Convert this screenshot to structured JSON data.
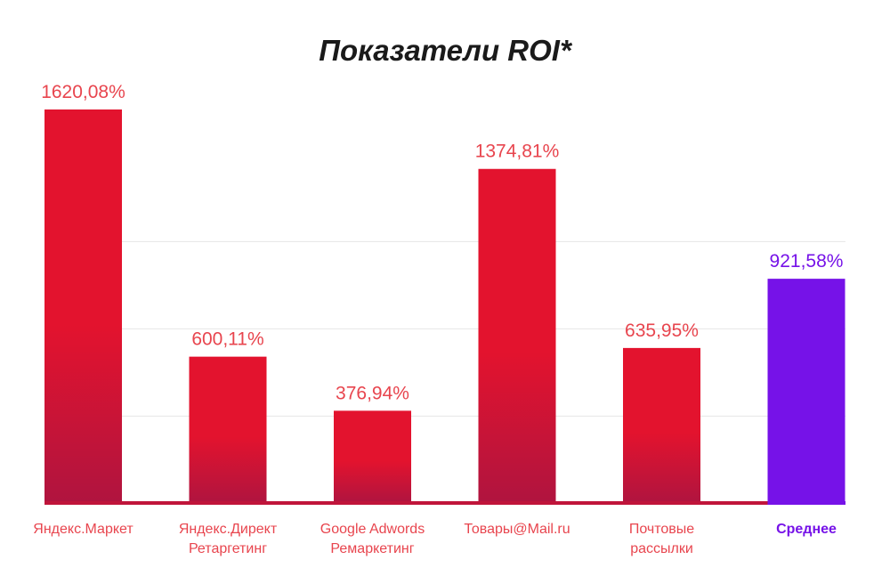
{
  "chart_data": {
    "type": "bar",
    "title": "Показатели ROI*",
    "categories": [
      [
        "Яндекс.Маркет"
      ],
      [
        "Яндекс.Директ",
        "Ретаргетинг"
      ],
      [
        "Google Adwords",
        "Ремаркетинг"
      ],
      [
        "Товары@Mail.ru"
      ],
      [
        "Почтовые",
        "рассылки"
      ],
      [
        "Среднее"
      ]
    ],
    "values": [
      1620.08,
      600.11,
      376.94,
      1374.81,
      635.95,
      921.58
    ],
    "value_labels": [
      "1620,08%",
      "600,11%",
      "376,94%",
      "1374,81%",
      "635,95%",
      "921,58%"
    ],
    "highlight_index": 5,
    "ylim": [
      0,
      1800
    ],
    "grid": true,
    "legend": "none",
    "colors": {
      "bar_top": "#e3132e",
      "bar_bottom": "#b0143f",
      "highlight": "#7612e8",
      "baseline": "#c0143a",
      "label": "#e8454e",
      "highlight_label": "#7612e8",
      "grid": "#e6e6e6",
      "title": "#1a1a1a"
    }
  }
}
